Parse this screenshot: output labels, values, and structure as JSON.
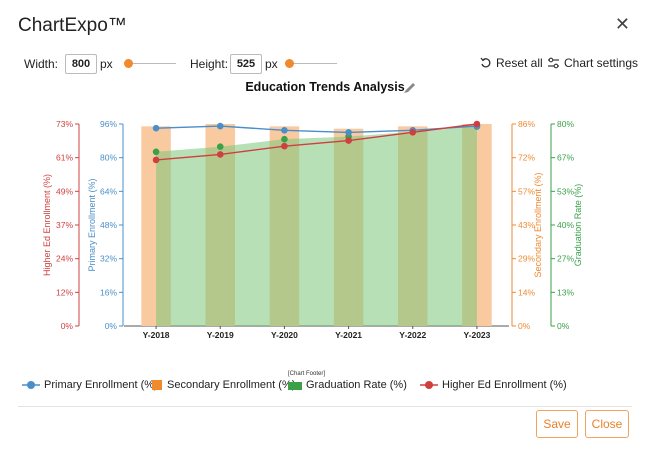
{
  "app": {
    "title": "ChartExpo™",
    "close_icon": "close-icon"
  },
  "toolbar": {
    "width_label": "Width:",
    "width_value": "800",
    "width_unit": "px",
    "height_label": "Height:",
    "height_value": "525",
    "height_unit": "px",
    "reset_label": "Reset all",
    "settings_label": "Chart settings",
    "slider_color": "#f08a2c"
  },
  "chart_title": "Education Trends Analysis",
  "chart_footer": "[Chart Footer]",
  "chart_data": {
    "type": "bar",
    "title": "Education Trends Analysis",
    "categories": [
      "Y-2018",
      "Y-2019",
      "Y-2020",
      "Y-2021",
      "Y-2022",
      "Y-2023"
    ],
    "series": [
      {
        "name": "Primary Enrollment (%)",
        "chart_type": "line",
        "axis": "Primary Enrollment (%)",
        "color": "#4a8fc9",
        "values": [
          94,
          95,
          93,
          92,
          93,
          95
        ]
      },
      {
        "name": "Secondary Enrollment (%)",
        "chart_type": "bar",
        "axis": "Secondary Enrollment (%)",
        "color": "#f9c9a0",
        "values": [
          85,
          86,
          85,
          84,
          85,
          86
        ]
      },
      {
        "name": "Graduation Rate (%)",
        "chart_type": "area",
        "axis": "Graduation Rate (%)",
        "color": "#7cc77c",
        "values": [
          69,
          71,
          74,
          75,
          77,
          79
        ]
      },
      {
        "name": "Higher Ed Enrollment (%)",
        "chart_type": "line",
        "axis": "Higher Ed Enrollment (%)",
        "color": "#cf3f3f",
        "values": [
          60,
          62,
          65,
          67,
          70,
          73
        ]
      }
    ],
    "axes": [
      {
        "label": "Higher Ed Enrollment (%)",
        "color": "#d04040",
        "ticks": [
          "0%",
          "12%",
          "24%",
          "37%",
          "49%",
          "61%",
          "73%"
        ],
        "range": [
          0,
          73
        ]
      },
      {
        "label": "Primary Enrollment (%)",
        "color": "#4a8fc9",
        "ticks": [
          "0%",
          "16%",
          "32%",
          "48%",
          "64%",
          "80%",
          "96%"
        ],
        "range": [
          0,
          96
        ]
      },
      {
        "label": "Secondary Enrollment (%)",
        "color": "#ee8a32",
        "ticks": [
          "0%",
          "14%",
          "29%",
          "43%",
          "57%",
          "72%",
          "86%"
        ],
        "range": [
          0,
          86
        ]
      },
      {
        "label": "Graduation Rate (%)",
        "color": "#3aa04a",
        "ticks": [
          "0%",
          "13%",
          "27%",
          "40%",
          "53%",
          "67%",
          "80%"
        ],
        "range": [
          0,
          80
        ]
      }
    ],
    "grid": false,
    "legend_position": "bottom"
  },
  "legend": {
    "items": [
      {
        "label": "Primary Enrollment (%)",
        "color": "#4a8fc9",
        "icon": "line-marker-icon"
      },
      {
        "label": "Secondary Enrollment (%)",
        "color": "#f08a2c",
        "icon": "bar-icon"
      },
      {
        "label": "Graduation Rate (%)",
        "color": "#3aa04a",
        "icon": "area-icon"
      },
      {
        "label": "Higher Ed Enrollment (%)",
        "color": "#cf3f3f",
        "icon": "line-marker-icon"
      }
    ]
  },
  "buttons": {
    "save_label": "Save",
    "close_label": "Close"
  },
  "accent_color": "#e8822b"
}
